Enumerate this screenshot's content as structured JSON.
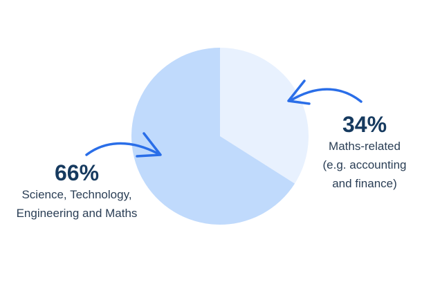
{
  "chart_data": {
    "type": "pie",
    "slices": [
      {
        "value": 66,
        "percent_label": "66%",
        "label_lines": [
          "Science, Technology,",
          "Engineering and Maths"
        ],
        "color": "#c0dafc"
      },
      {
        "value": 34,
        "percent_label": "34%",
        "label_lines": [
          "Maths-related",
          "(e.g. accounting",
          "and finance)"
        ],
        "color": "#e8f1fe"
      }
    ],
    "start": "top",
    "direction": "counterclockwise-from-top for first slice",
    "legend": "annotations with arrows"
  },
  "colors": {
    "arrow": "#2a6ee8",
    "percent_text": "#163a5f",
    "label_text": "#2a3e55"
  }
}
